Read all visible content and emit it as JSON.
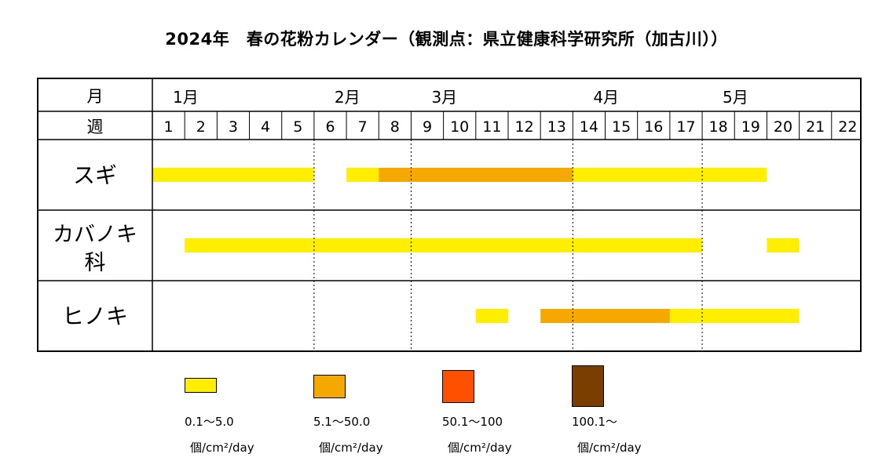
{
  "title": "2024年　春の花粉カレンダー（観測点：県立健康科学研究所（加古川））",
  "chart_data": {
    "type": "gantt",
    "title": "2024年　春の花粉カレンダー（観測点：県立健康科学研究所（加古川））",
    "header_labels": {
      "month": "月",
      "week": "週"
    },
    "weeks": [
      "1",
      "2",
      "3",
      "4",
      "5",
      "6",
      "7",
      "8",
      "9",
      "10",
      "11",
      "12",
      "13",
      "14",
      "15",
      "16",
      "17",
      "18",
      "19",
      "20",
      "21",
      "22"
    ],
    "months": [
      {
        "label": "1月",
        "start_week": 1
      },
      {
        "label": "2月",
        "start_week": 6
      },
      {
        "label": "3月",
        "start_week": 9
      },
      {
        "label": "4月",
        "start_week": 14
      },
      {
        "label": "5月",
        "start_week": 18
      }
    ],
    "levels": [
      {
        "id": "l1",
        "color": "#ffee00",
        "label": "0.1～5.0",
        "unit": "個/cm²/day"
      },
      {
        "id": "l2",
        "color": "#f5a800",
        "label": "5.1～50.0",
        "unit": "個/cm²/day"
      },
      {
        "id": "l3",
        "color": "#ff5000",
        "label": "50.1～100",
        "unit": "個/cm²/day"
      },
      {
        "id": "l4",
        "color": "#7a3f00",
        "label": "100.1～",
        "unit": "個/cm²/day"
      }
    ],
    "rows": [
      {
        "label": "スギ",
        "segments": [
          {
            "start_week": 1,
            "end_week": 5,
            "level": "l1"
          },
          {
            "start_week": 7,
            "end_week": 7,
            "level": "l1"
          },
          {
            "start_week": 8,
            "end_week": 13,
            "level": "l2"
          },
          {
            "start_week": 14,
            "end_week": 19,
            "level": "l1"
          }
        ]
      },
      {
        "label": "カバノキ科",
        "segments": [
          {
            "start_week": 2,
            "end_week": 17,
            "level": "l1"
          },
          {
            "start_week": 20,
            "end_week": 20,
            "level": "l1"
          }
        ]
      },
      {
        "label": "ヒノキ",
        "segments": [
          {
            "start_week": 11,
            "end_week": 11,
            "level": "l1"
          },
          {
            "start_week": 13,
            "end_week": 16,
            "level": "l2"
          },
          {
            "start_week": 17,
            "end_week": 20,
            "level": "l1"
          }
        ]
      }
    ]
  }
}
